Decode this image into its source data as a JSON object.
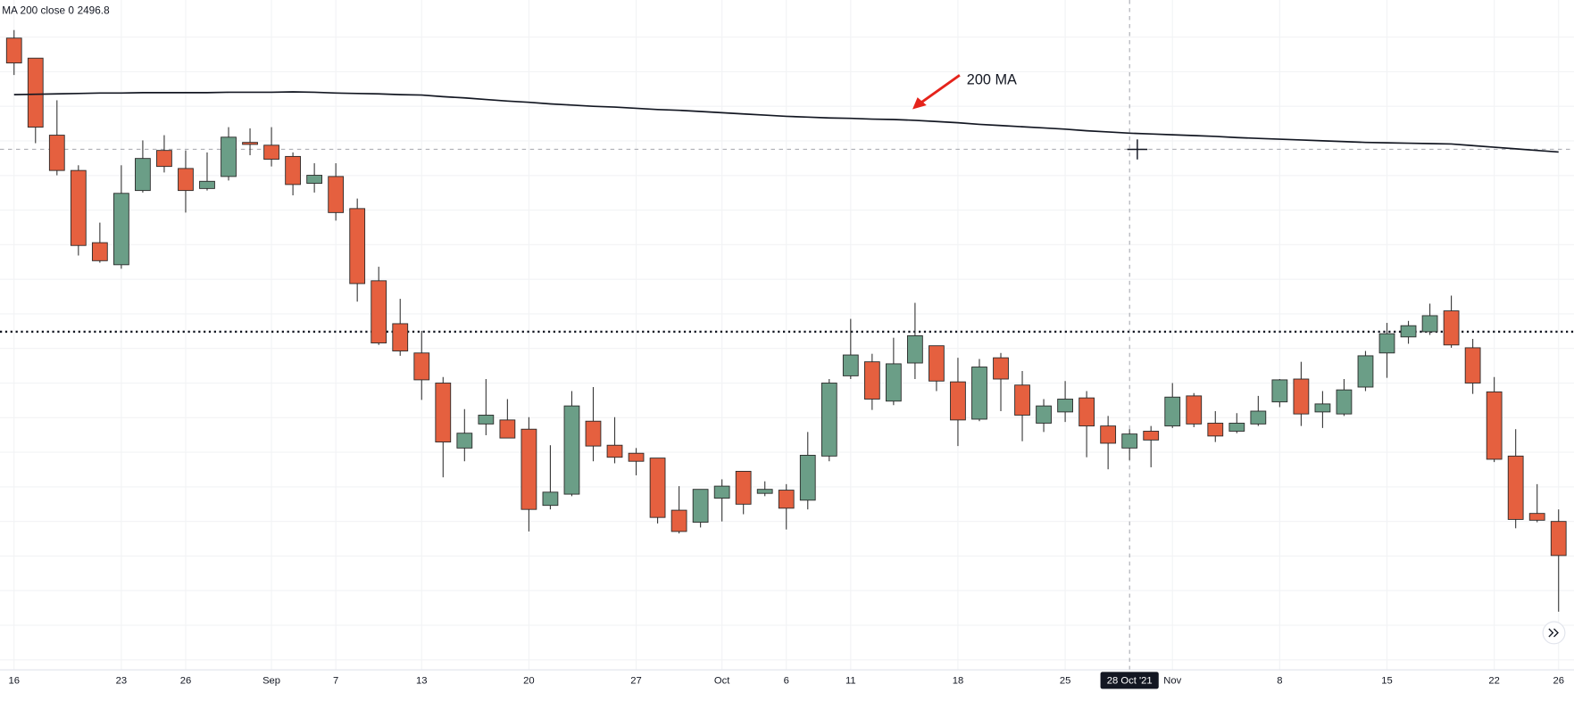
{
  "chart_data": {
    "type": "candlestick",
    "categories": [
      "16",
      null,
      null,
      null,
      null,
      "23",
      null,
      null,
      "26",
      null,
      null,
      null,
      "Sep",
      null,
      null,
      "7",
      null,
      null,
      null,
      "13",
      null,
      null,
      null,
      null,
      "20",
      null,
      null,
      null,
      null,
      "27",
      null,
      null,
      null,
      "Oct",
      null,
      null,
      "6",
      null,
      null,
      "11",
      null,
      null,
      null,
      null,
      "18",
      null,
      null,
      null,
      null,
      "25",
      null,
      null,
      "28 Oct '21",
      null,
      "Nov",
      null,
      null,
      null,
      null,
      "8",
      null,
      null,
      null,
      null,
      "15",
      null,
      null,
      null,
      null,
      "22",
      null,
      null,
      "26"
    ],
    "open": [
      2520.5,
      2515.5,
      2496.3,
      2487.5,
      2469.5,
      2464,
      2482.5,
      2492.5,
      2488,
      2483,
      2486,
      2494.5,
      2493.8,
      2491,
      2484.3,
      2486,
      2478,
      2460,
      2449.3,
      2442,
      2434.5,
      2418.3,
      2424.3,
      2425.3,
      2423,
      2404,
      2406.8,
      2425,
      2419,
      2417,
      2415.8,
      2402.8,
      2399.8,
      2405.8,
      2412.5,
      2407,
      2407.8,
      2405.3,
      2416.3,
      2436.3,
      2439.8,
      2430,
      2439.5,
      2443.8,
      2434.8,
      2425.5,
      2440.8,
      2434,
      2424.5,
      2427.3,
      2430.8,
      2423.8,
      2418.3,
      2422.5,
      2423.8,
      2431.3,
      2424.5,
      2422.5,
      2424.3,
      2429.8,
      2435.5,
      2427.3,
      2426.8,
      2433.5,
      2442,
      2446,
      2447.3,
      2452.5,
      2443.3,
      2432.3,
      2416.3,
      2402,
      2400
    ],
    "high": [
      2522.5,
      2515.5,
      2505,
      2488.8,
      2474.5,
      2488.8,
      2495,
      2496.3,
      2492.5,
      2492,
      2498.3,
      2498,
      2498.3,
      2492,
      2489.3,
      2489.3,
      2480.5,
      2463.5,
      2455.5,
      2447.5,
      2436,
      2428,
      2435.5,
      2430.5,
      2426,
      2419,
      2432.5,
      2433.5,
      2426,
      2418.3,
      2415.8,
      2408.8,
      2408,
      2410.5,
      2412.5,
      2410,
      2409.3,
      2422.3,
      2435.5,
      2450.5,
      2441.8,
      2445.8,
      2454.5,
      2443.8,
      2440.8,
      2440.5,
      2442,
      2437.5,
      2430.5,
      2435,
      2432.5,
      2426.3,
      2423,
      2423.8,
      2434.5,
      2432,
      2427.5,
      2427,
      2431.3,
      2435.5,
      2439.8,
      2432.5,
      2435.5,
      2442.5,
      2449.5,
      2450,
      2454.3,
      2456.3,
      2445.5,
      2436,
      2423,
      2409.3,
      2403
    ],
    "low": [
      2511.3,
      2494.3,
      2486.3,
      2466.3,
      2464.5,
      2463,
      2482,
      2487,
      2477,
      2482.5,
      2485,
      2491.3,
      2488.5,
      2481.3,
      2482,
      2475,
      2454.8,
      2444,
      2441.3,
      2430.3,
      2411,
      2415,
      2421.5,
      2420.8,
      2397.5,
      2403,
      2406.3,
      2415,
      2414.5,
      2411.5,
      2399.5,
      2397,
      2398.5,
      2400,
      2401.8,
      2406.3,
      2398,
      2403,
      2415,
      2435.5,
      2427.8,
      2429,
      2435.5,
      2432.5,
      2418.8,
      2425,
      2427.5,
      2420,
      2422.3,
      2424.8,
      2416,
      2413,
      2415.3,
      2413.5,
      2423.3,
      2423.5,
      2419.8,
      2422,
      2423.8,
      2428.5,
      2423.8,
      2423.3,
      2426.3,
      2432.5,
      2435.8,
      2444.3,
      2446.5,
      2443.3,
      2431.8,
      2414.8,
      2398.3,
      2399.8,
      2377.5
    ],
    "close": [
      2514.3,
      2498.3,
      2487.5,
      2468.8,
      2465,
      2481.8,
      2490.5,
      2488.5,
      2482.5,
      2484.8,
      2495.8,
      2494,
      2490.3,
      2484,
      2486.3,
      2477,
      2459.3,
      2444.5,
      2442.5,
      2435.3,
      2419.8,
      2422,
      2426.5,
      2420.8,
      2403,
      2407.3,
      2428.8,
      2418.8,
      2416,
      2415,
      2401,
      2397.5,
      2408,
      2408.8,
      2404.3,
      2408,
      2403.3,
      2416.5,
      2434.5,
      2441.5,
      2430.5,
      2439.3,
      2446.3,
      2435,
      2425.3,
      2438.5,
      2435.5,
      2426.5,
      2428.8,
      2430.5,
      2423.8,
      2419.5,
      2421.8,
      2420.3,
      2431,
      2424.3,
      2421.3,
      2424.5,
      2427.5,
      2435.3,
      2426.8,
      2429.3,
      2432.8,
      2441.3,
      2446.8,
      2448.8,
      2451.3,
      2444,
      2434.5,
      2415.5,
      2400.5,
      2400.3,
      2391.5
    ],
    "up_color": "#6b9e87",
    "down_color": "#e5603f",
    "ma": {
      "name": "MA 200 close 0",
      "color": "#131722",
      "values": [
        2506.4,
        2506.5,
        2506.6,
        2506.7,
        2506.8,
        2506.8,
        2506.9,
        2506.9,
        2506.9,
        2506.9,
        2507.0,
        2507.0,
        2507.0,
        2507.1,
        2507.0,
        2506.8,
        2506.7,
        2506.6,
        2506.4,
        2506.3,
        2505.9,
        2505.6,
        2505.2,
        2504.8,
        2504.5,
        2504.1,
        2503.8,
        2503.5,
        2503.3,
        2503.0,
        2502.7,
        2502.5,
        2502.2,
        2501.9,
        2501.6,
        2501.3,
        2501.0,
        2500.8,
        2500.6,
        2500.5,
        2500.3,
        2500.2,
        2500.0,
        2499.7,
        2499.4,
        2499.0,
        2498.7,
        2498.4,
        2498.1,
        2497.8,
        2497.4,
        2497.1,
        2496.8,
        2496.6,
        2496.4,
        2496.2,
        2496.0,
        2495.7,
        2495.5,
        2495.3,
        2495.1,
        2494.9,
        2494.7,
        2494.5,
        2494.4,
        2494.3,
        2494.2,
        2494.1,
        2493.7,
        2493.3,
        2492.9,
        2492.5,
        2492.1
      ]
    },
    "level_line": 2447.3,
    "crosshair": {
      "category": "28 Oct '21",
      "value": 2492.8
    },
    "annotations": [
      {
        "text": "200 MA"
      }
    ],
    "ylim": [
      2363,
      2530
    ],
    "grid": true
  }
}
